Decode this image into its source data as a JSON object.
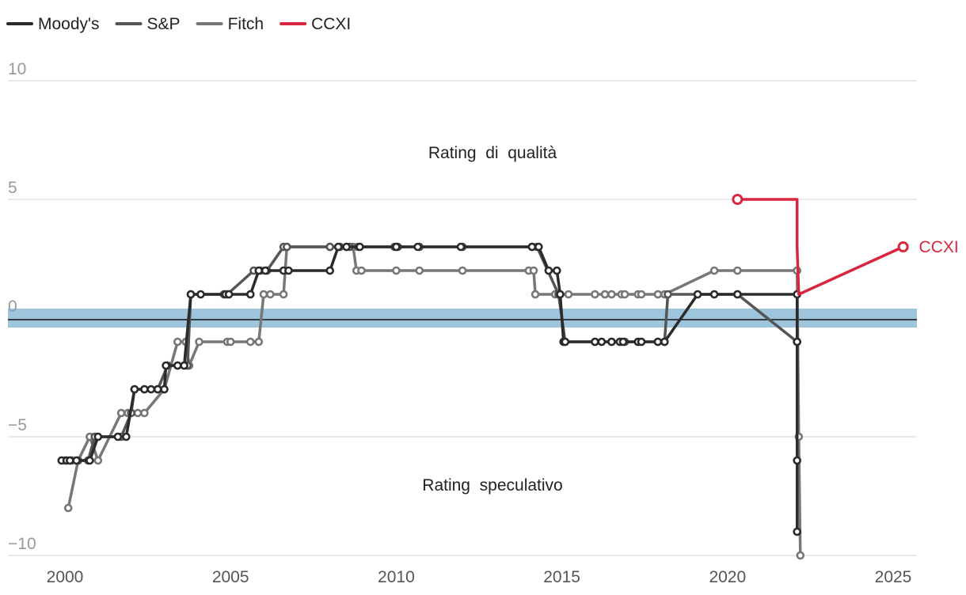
{
  "chart_data": {
    "type": "line",
    "title": "",
    "xlabel": "",
    "ylabel": "",
    "xlim": [
      1999.3,
      2025.9
    ],
    "ylim": [
      -10,
      10
    ],
    "yticks": [
      10,
      5,
      0,
      -5,
      -10
    ],
    "ytick_labels": [
      "10",
      "5",
      "0",
      "−5",
      "−10"
    ],
    "xticks": [
      2000,
      2005,
      2010,
      2015,
      2020,
      2025
    ],
    "band": {
      "from": -1,
      "to": 0,
      "color": "#9fc5dc"
    },
    "zero_line_color": "#111111",
    "annotations": {
      "upper": "Rating  di  qualità",
      "lower": "Rating  speculativo"
    },
    "end_label": "CCXI",
    "legend_position": "top-left",
    "series": [
      {
        "name": "Fitch",
        "color": "#777777",
        "points": [
          [
            2000.1,
            -8
          ],
          [
            2000.4,
            -6
          ],
          [
            2000.75,
            -5
          ],
          [
            2001.0,
            -6
          ],
          [
            2001.7,
            -4
          ],
          [
            2001.9,
            -4
          ],
          [
            2002.2,
            -4
          ],
          [
            2002.4,
            -4
          ],
          [
            2003.0,
            -3
          ],
          [
            2003.4,
            -1
          ],
          [
            2003.65,
            -1
          ],
          [
            2003.75,
            -2
          ],
          [
            2004.05,
            -1
          ],
          [
            2004.9,
            -1
          ],
          [
            2005.0,
            -1
          ],
          [
            2005.6,
            -1
          ],
          [
            2005.85,
            -1
          ],
          [
            2006.0,
            1
          ],
          [
            2006.2,
            1
          ],
          [
            2006.6,
            1
          ],
          [
            2006.7,
            3
          ],
          [
            2008.0,
            3
          ],
          [
            2008.5,
            3
          ],
          [
            2008.7,
            3
          ],
          [
            2008.8,
            2
          ],
          [
            2008.95,
            2
          ],
          [
            2010.0,
            2
          ],
          [
            2010.7,
            2
          ],
          [
            2012.0,
            2
          ],
          [
            2014.0,
            2
          ],
          [
            2014.15,
            2
          ],
          [
            2014.2,
            1
          ],
          [
            2014.8,
            1
          ],
          [
            2015.2,
            1
          ],
          [
            2016.0,
            1
          ],
          [
            2016.3,
            1
          ],
          [
            2016.5,
            1
          ],
          [
            2016.8,
            1
          ],
          [
            2016.9,
            1
          ],
          [
            2017.3,
            1
          ],
          [
            2017.4,
            1
          ],
          [
            2017.9,
            1
          ],
          [
            2018.1,
            1
          ],
          [
            2019.6,
            2
          ],
          [
            2020.3,
            2
          ],
          [
            2022.1,
            2
          ],
          [
            2022.15,
            -5
          ],
          [
            2022.2,
            -10
          ]
        ]
      },
      {
        "name": "S&P",
        "color": "#555555",
        "points": [
          [
            2000.0,
            -6
          ],
          [
            2000.2,
            -6
          ],
          [
            2000.4,
            -6
          ],
          [
            2000.7,
            -6
          ],
          [
            2000.9,
            -5
          ],
          [
            2001.7,
            -5
          ],
          [
            2002.0,
            -4
          ],
          [
            2002.1,
            -3
          ],
          [
            2002.4,
            -3
          ],
          [
            2002.8,
            -3
          ],
          [
            2003.1,
            -2
          ],
          [
            2003.4,
            -2
          ],
          [
            2003.7,
            -2
          ],
          [
            2003.8,
            1
          ],
          [
            2004.8,
            1
          ],
          [
            2004.9,
            1
          ],
          [
            2005.7,
            2
          ],
          [
            2005.9,
            2
          ],
          [
            2006.1,
            2
          ],
          [
            2006.6,
            3
          ],
          [
            2006.7,
            3
          ],
          [
            2008.0,
            3
          ],
          [
            2008.3,
            3
          ],
          [
            2008.6,
            3
          ],
          [
            2008.85,
            3
          ],
          [
            2009.95,
            3
          ],
          [
            2010.05,
            3
          ],
          [
            2010.7,
            3
          ],
          [
            2012.0,
            3
          ],
          [
            2014.1,
            3
          ],
          [
            2014.25,
            3
          ],
          [
            2014.9,
            1
          ],
          [
            2015.1,
            -1
          ],
          [
            2016.0,
            -1
          ],
          [
            2016.2,
            -1
          ],
          [
            2016.5,
            -1
          ],
          [
            2016.8,
            -1
          ],
          [
            2016.9,
            -1
          ],
          [
            2017.3,
            -1
          ],
          [
            2017.4,
            -1
          ],
          [
            2017.9,
            -1
          ],
          [
            2018.1,
            -1
          ],
          [
            2018.2,
            1
          ],
          [
            2020.3,
            1
          ],
          [
            2022.1,
            -1
          ]
        ]
      },
      {
        "name": "Moody's",
        "color": "#2b2b2b",
        "points": [
          [
            1999.9,
            -6
          ],
          [
            2000.05,
            -6
          ],
          [
            2000.15,
            -6
          ],
          [
            2000.35,
            -6
          ],
          [
            2000.75,
            -6
          ],
          [
            2001.0,
            -5
          ],
          [
            2001.6,
            -5
          ],
          [
            2001.85,
            -5
          ],
          [
            2002.1,
            -3
          ],
          [
            2002.4,
            -3
          ],
          [
            2002.6,
            -3
          ],
          [
            2002.8,
            -3
          ],
          [
            2003.0,
            -3
          ],
          [
            2003.05,
            -2
          ],
          [
            2003.4,
            -2
          ],
          [
            2003.6,
            -2
          ],
          [
            2003.8,
            1
          ],
          [
            2004.1,
            1
          ],
          [
            2004.85,
            1
          ],
          [
            2004.95,
            1
          ],
          [
            2005.6,
            1
          ],
          [
            2005.85,
            2
          ],
          [
            2006.05,
            2
          ],
          [
            2006.6,
            2
          ],
          [
            2006.75,
            2
          ],
          [
            2008.0,
            2
          ],
          [
            2008.25,
            3
          ],
          [
            2008.5,
            3
          ],
          [
            2008.9,
            3
          ],
          [
            2010.0,
            3
          ],
          [
            2010.65,
            3
          ],
          [
            2011.95,
            3
          ],
          [
            2014.1,
            3
          ],
          [
            2014.3,
            3
          ],
          [
            2014.6,
            2
          ],
          [
            2014.85,
            2
          ],
          [
            2014.95,
            1
          ],
          [
            2015.05,
            -1
          ],
          [
            2015.1,
            -1
          ],
          [
            2016.0,
            -1
          ],
          [
            2016.2,
            -1
          ],
          [
            2016.5,
            -1
          ],
          [
            2016.75,
            -1
          ],
          [
            2016.85,
            -1
          ],
          [
            2017.3,
            -1
          ],
          [
            2017.4,
            -1
          ],
          [
            2017.9,
            -1
          ],
          [
            2018.1,
            -1
          ],
          [
            2019.1,
            1
          ],
          [
            2019.6,
            1
          ],
          [
            2020.3,
            1
          ],
          [
            2022.1,
            1
          ],
          [
            2022.1,
            -1
          ],
          [
            2022.1,
            -6
          ],
          [
            2022.1,
            -9
          ]
        ]
      },
      {
        "name": "CCXI",
        "color": "#d7263d",
        "points": [
          [
            2020.3,
            5
          ],
          [
            2022.1,
            5
          ],
          [
            2022.1,
            3
          ],
          [
            2022.15,
            1
          ],
          [
            2025.3,
            3
          ]
        ]
      }
    ]
  }
}
